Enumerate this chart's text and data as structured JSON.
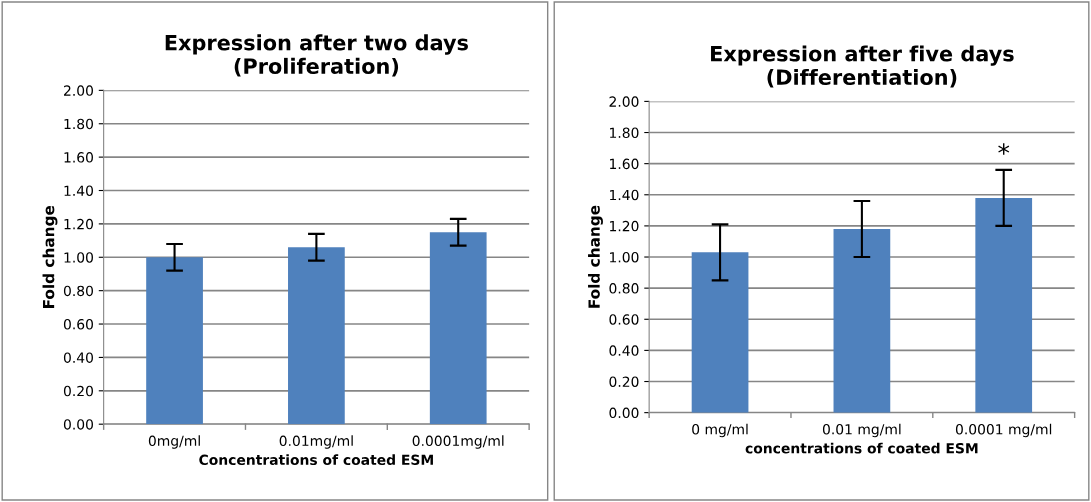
{
  "chart_data": [
    {
      "type": "bar",
      "title": "Expression after two days\n(Proliferation)",
      "xlabel": "Concentrations of coated ESM",
      "ylabel": "Fold change",
      "categories": [
        "0mg/ml",
        "0.01mg/ml",
        "0.0001mg/ml"
      ],
      "values": [
        1.0,
        1.06,
        1.15
      ],
      "errors": [
        0.08,
        0.08,
        0.08
      ],
      "color": "#4f81bd",
      "ylim": [
        0,
        2
      ],
      "yticks": [
        {
          "value": 0,
          "label": "0.00"
        },
        {
          "value": 0.2,
          "label": "0.20"
        },
        {
          "value": 0.4,
          "label": "0.40"
        },
        {
          "value": 0.6,
          "label": "0.60"
        },
        {
          "value": 0.8,
          "label": "0.80"
        },
        {
          "value": 1,
          "label": "1.00"
        },
        {
          "value": 1.2,
          "label": "1.20"
        },
        {
          "value": 1.4,
          "label": "1.40"
        },
        {
          "value": 1.6,
          "label": "1.60"
        },
        {
          "value": 1.8,
          "label": "1.80"
        },
        {
          "value": 2,
          "label": "2.00"
        }
      ],
      "grid": "y"
    },
    {
      "type": "bar",
      "title": "Expression after five days\n(Differentiation)",
      "xlabel": "concentrations of coated ESM",
      "ylabel": "Fold change",
      "categories": [
        "0 mg/ml",
        "0.01 mg/ml",
        "0.0001 mg/ml"
      ],
      "values": [
        1.03,
        1.18,
        1.38
      ],
      "errors": [
        0.18,
        0.18,
        0.18
      ],
      "color": "#4f81bd",
      "ylim": [
        0,
        2
      ],
      "yticks": [
        {
          "value": 0,
          "label": "0.00"
        },
        {
          "value": 0.2,
          "label": "0.20"
        },
        {
          "value": 0.4,
          "label": "0.40"
        },
        {
          "value": 0.6,
          "label": "0.60"
        },
        {
          "value": 0.8,
          "label": "0.80"
        },
        {
          "value": 1,
          "label": "1.00"
        },
        {
          "value": 1.2,
          "label": "1.20"
        },
        {
          "value": 1.4,
          "label": "1.40"
        },
        {
          "value": 1.6,
          "label": "1.60"
        },
        {
          "value": 1.8,
          "label": "1.80"
        },
        {
          "value": 2,
          "label": "2.00"
        }
      ],
      "grid": "y",
      "annotations": [
        "*"
      ]
    }
  ]
}
